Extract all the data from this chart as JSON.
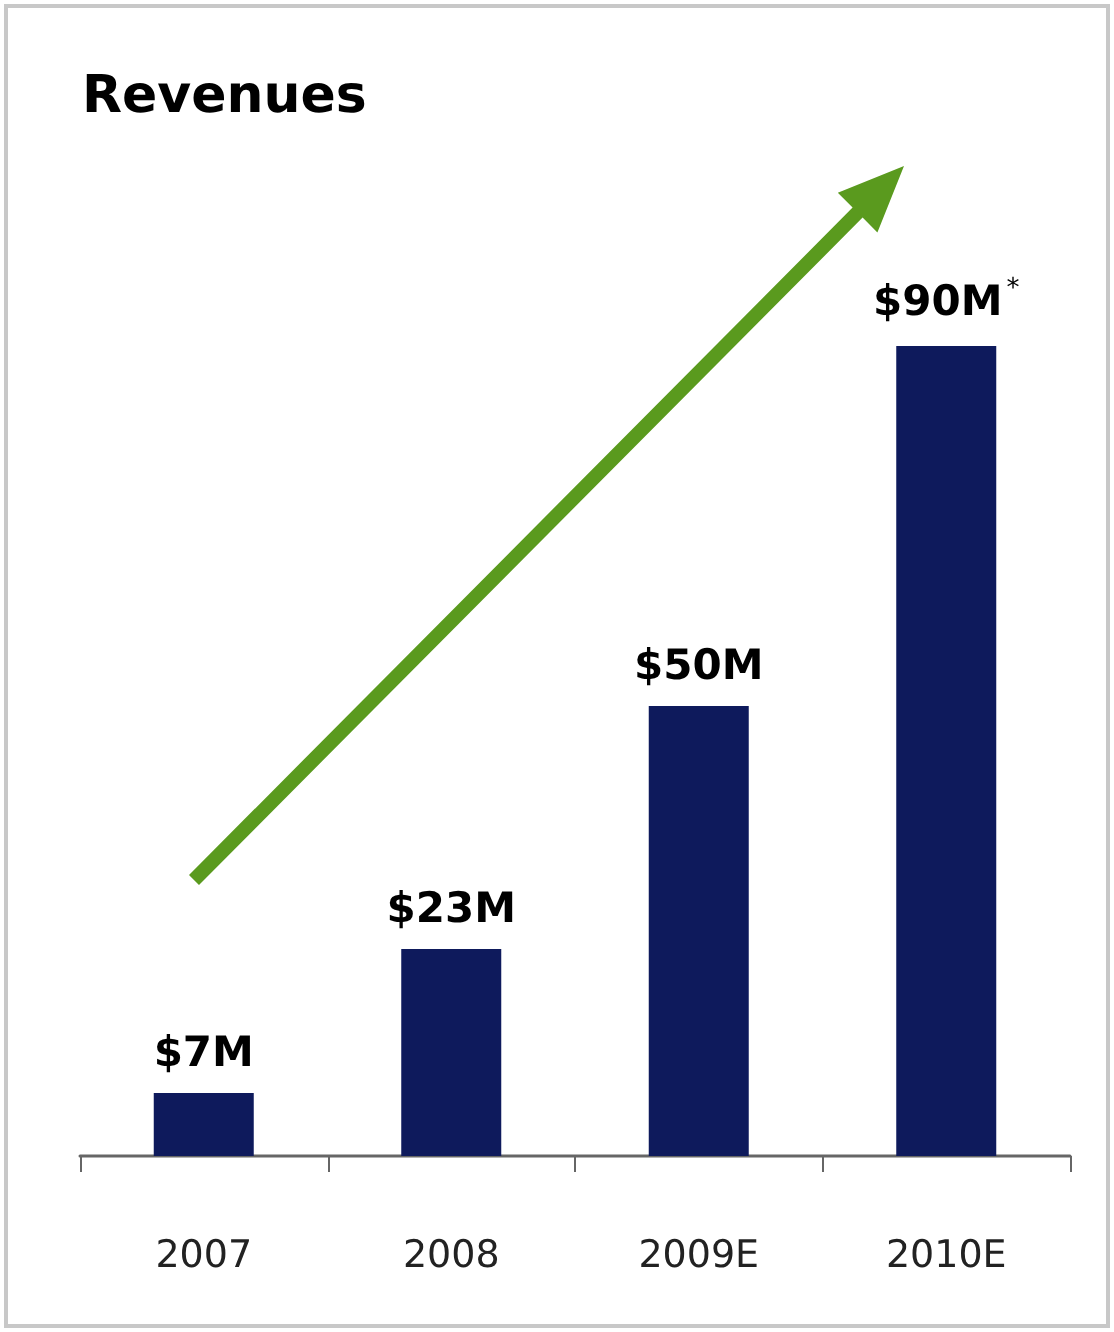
{
  "chart_data": {
    "type": "bar",
    "title": "Revenues",
    "categories": [
      "2007",
      "2008",
      "2009E",
      "2010E"
    ],
    "values": [
      7,
      23,
      50,
      90
    ],
    "color": "#0e1a5c",
    "value_labels": [
      "$7M",
      "$23M",
      "$50M",
      "$90M$^{*}$"
    ]
  }
}
